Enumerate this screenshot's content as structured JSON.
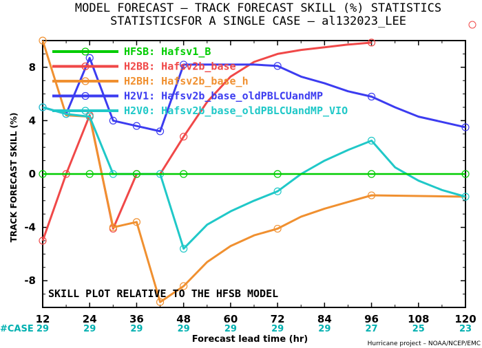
{
  "chart_data": {
    "type": "line",
    "title_line1": "MODEL FORECAST – TRACK FORECAST SKILL (%) STATISTICS",
    "title_line2": "STATISTICSFOR A SINGLE CASE – al132023_LEE",
    "xlabel": "Forecast lead time (hr)",
    "ylabel": "TRACK FORECAST SKILL (%)",
    "xlim": [
      12,
      120
    ],
    "ylim": [
      -10,
      10
    ],
    "x_ticks": [
      12,
      24,
      36,
      48,
      60,
      72,
      84,
      96,
      108,
      120
    ],
    "y_ticks": [
      8,
      4,
      0,
      -4,
      -8
    ],
    "y_tick_labels": [
      "8",
      "4",
      "0",
      "-4",
      "-8"
    ],
    "case_label": "#CASE",
    "case_counts": [
      "29",
      "29",
      "29",
      "29",
      "29",
      "29",
      "29",
      "27",
      "25",
      "23"
    ],
    "annotation": "SKILL PLOT RELATIVE TO THE HFSB MODEL",
    "credit": "Hurricane project – NOAA/NCEP/EMC",
    "grid": false,
    "legend_position": "top-left",
    "series": [
      {
        "name": "HFSB: Hafsv1_B",
        "color": "#00cc00",
        "points": [
          [
            12,
            0
          ],
          [
            18,
            0
          ],
          [
            24,
            0
          ],
          [
            30,
            0
          ],
          [
            36,
            0
          ],
          [
            42,
            0
          ],
          [
            48,
            0
          ],
          [
            54,
            0
          ],
          [
            60,
            0
          ],
          [
            66,
            0
          ],
          [
            72,
            0
          ],
          [
            78,
            0
          ],
          [
            84,
            0
          ],
          [
            90,
            0
          ],
          [
            96,
            0
          ],
          [
            102,
            0
          ],
          [
            108,
            0
          ],
          [
            114,
            0
          ],
          [
            120,
            0
          ]
        ],
        "marker_x": [
          12,
          24,
          36,
          48,
          72,
          96,
          120
        ]
      },
      {
        "name": "H2BB: Hafsv2b_base",
        "color": "#f04848",
        "points": [
          [
            12,
            -5
          ],
          [
            18,
            0
          ],
          [
            24,
            4.4
          ],
          [
            30,
            -4.1
          ],
          [
            36,
            0
          ],
          [
            42,
            0
          ],
          [
            48,
            2.8
          ],
          [
            54,
            5.4
          ],
          [
            60,
            7.3
          ],
          [
            66,
            8.4
          ],
          [
            72,
            9.0
          ],
          [
            78,
            9.3
          ],
          [
            84,
            9.5
          ],
          [
            90,
            9.7
          ],
          [
            96,
            9.85
          ]
        ],
        "marker_x": [
          12,
          18,
          24,
          30,
          36,
          48,
          96
        ]
      },
      {
        "name": "H2BH: Hafsv2b_base_h",
        "color": "#f09030",
        "points": [
          [
            12,
            10
          ],
          [
            18,
            4.4
          ],
          [
            24,
            4.3
          ],
          [
            30,
            -4.0
          ],
          [
            36,
            -3.6
          ],
          [
            42,
            -9.6
          ],
          [
            48,
            -8.4
          ],
          [
            54,
            -6.6
          ],
          [
            60,
            -5.4
          ],
          [
            66,
            -4.6
          ],
          [
            72,
            -4.1
          ],
          [
            78,
            -3.2
          ],
          [
            84,
            -2.6
          ],
          [
            90,
            -2.1
          ],
          [
            96,
            -1.6
          ],
          [
            120,
            -1.7
          ]
        ],
        "marker_x": [
          12,
          24,
          30,
          36,
          42,
          48,
          72,
          96
        ]
      },
      {
        "name": "H2V1: Hafsv2b_base_oldPBLCUandMP",
        "color": "#3c3cf0",
        "points": [
          [
            12,
            5
          ],
          [
            18,
            4.5
          ],
          [
            24,
            8.7
          ],
          [
            30,
            4.0
          ],
          [
            36,
            3.6
          ],
          [
            42,
            3.2
          ],
          [
            48,
            8.2
          ],
          [
            54,
            8.2
          ],
          [
            60,
            8.2
          ],
          [
            66,
            8.2
          ],
          [
            72,
            8.1
          ],
          [
            78,
            7.3
          ],
          [
            84,
            6.8
          ],
          [
            90,
            6.2
          ],
          [
            96,
            5.8
          ],
          [
            102,
            5.0
          ],
          [
            108,
            4.3
          ],
          [
            114,
            3.9
          ],
          [
            120,
            3.5
          ]
        ],
        "marker_x": [
          12,
          18,
          24,
          30,
          36,
          42,
          48,
          72,
          96,
          120
        ]
      },
      {
        "name": "H2V0: Hafsv2b_base_oldPBLCUandMP_VIO",
        "color": "#20c8c8",
        "points": [
          [
            12,
            5
          ],
          [
            18,
            4.5
          ],
          [
            24,
            4.3
          ],
          [
            30,
            0
          ],
          [
            36,
            0
          ],
          [
            42,
            0
          ],
          [
            48,
            -5.6
          ],
          [
            54,
            -3.8
          ],
          [
            60,
            -2.8
          ],
          [
            66,
            -2.0
          ],
          [
            72,
            -1.3
          ],
          [
            78,
            0
          ],
          [
            84,
            1.0
          ],
          [
            90,
            1.8
          ],
          [
            96,
            2.5
          ],
          [
            102,
            0.5
          ],
          [
            108,
            -0.5
          ],
          [
            114,
            -1.2
          ],
          [
            120,
            -1.7
          ]
        ],
        "marker_x": [
          12,
          18,
          24,
          30,
          42,
          48,
          72,
          96,
          120
        ]
      }
    ]
  }
}
